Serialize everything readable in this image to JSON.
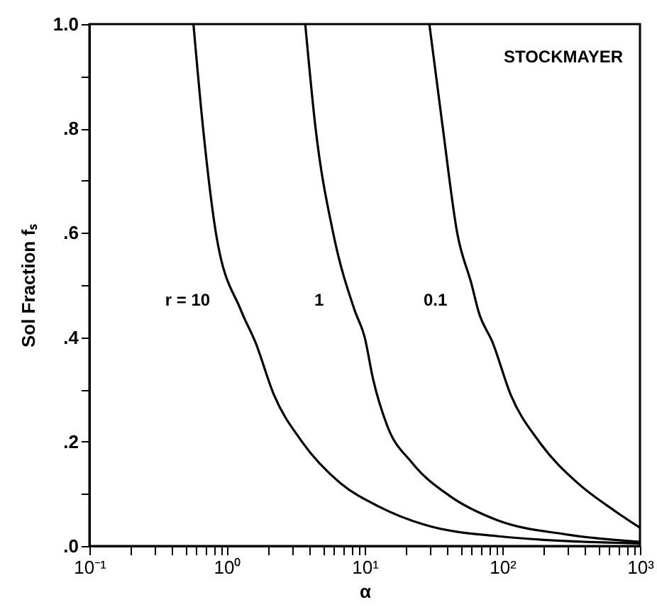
{
  "chart_data": {
    "type": "line",
    "xlabel": "α",
    "ylabel": "Sol Fraction fₛ",
    "annotations": [
      "STOCKMAYER"
    ],
    "log": "x",
    "grid": false,
    "legend": false,
    "xlim": [
      0.1,
      1000
    ],
    "ylim": [
      0,
      1
    ],
    "xticks": [
      {
        "value": 0.1,
        "label": "10⁻¹"
      },
      {
        "value": 0.2,
        "label": null
      },
      {
        "value": 0.3,
        "label": null
      },
      {
        "value": 0.4,
        "label": null
      },
      {
        "value": 0.5,
        "label": null
      },
      {
        "value": 0.6,
        "label": null
      },
      {
        "value": 0.7,
        "label": null
      },
      {
        "value": 0.8,
        "label": null
      },
      {
        "value": 0.9,
        "label": null
      },
      {
        "value": 1,
        "label": "10⁰"
      },
      {
        "value": 2,
        "label": null
      },
      {
        "value": 3,
        "label": null
      },
      {
        "value": 4,
        "label": null
      },
      {
        "value": 5,
        "label": null
      },
      {
        "value": 6,
        "label": null
      },
      {
        "value": 7,
        "label": null
      },
      {
        "value": 8,
        "label": null
      },
      {
        "value": 9,
        "label": null
      },
      {
        "value": 10,
        "label": "10¹"
      },
      {
        "value": 20,
        "label": null
      },
      {
        "value": 30,
        "label": null
      },
      {
        "value": 40,
        "label": null
      },
      {
        "value": 50,
        "label": null
      },
      {
        "value": 60,
        "label": null
      },
      {
        "value": 70,
        "label": null
      },
      {
        "value": 80,
        "label": null
      },
      {
        "value": 90,
        "label": null
      },
      {
        "value": 100,
        "label": "10²"
      },
      {
        "value": 200,
        "label": null
      },
      {
        "value": 300,
        "label": null
      },
      {
        "value": 400,
        "label": null
      },
      {
        "value": 500,
        "label": null
      },
      {
        "value": 600,
        "label": null
      },
      {
        "value": 700,
        "label": null
      },
      {
        "value": 800,
        "label": null
      },
      {
        "value": 900,
        "label": null
      },
      {
        "value": 1000,
        "label": "10³"
      }
    ],
    "yticks": [
      {
        "value": 0,
        "label": ".0"
      },
      {
        "value": 0.1,
        "label": null
      },
      {
        "value": 0.2,
        "label": ".2"
      },
      {
        "value": 0.3,
        "label": null
      },
      {
        "value": 0.4,
        "label": ".4"
      },
      {
        "value": 0.5,
        "label": null
      },
      {
        "value": 0.6,
        "label": ".6"
      },
      {
        "value": 0.7,
        "label": null
      },
      {
        "value": 0.8,
        "label": ".8"
      },
      {
        "value": 0.9,
        "label": null
      },
      {
        "value": 1,
        "label": "1.0"
      }
    ],
    "series": [
      {
        "name": "r = 10",
        "color": "#000000",
        "x": [
          0.57,
          0.67,
          0.83,
          1.27,
          1.61,
          2.19,
          3.5,
          6.7,
          12.6,
          27,
          91,
          1000
        ],
        "values": [
          1,
          0.8,
          0.6,
          0.45,
          0.39,
          0.29,
          0.2,
          0.12,
          0.076,
          0.041,
          0.019,
          0.005
        ]
      },
      {
        "name": "1",
        "color": "#000000",
        "x": [
          3.7,
          4.4,
          5.9,
          8.5,
          10,
          11.5,
          14.6,
          22,
          42,
          91,
          295,
          1000
        ],
        "values": [
          1,
          0.8,
          0.6,
          0.45,
          0.4,
          0.32,
          0.23,
          0.16,
          0.095,
          0.05,
          0.022,
          0.008
        ]
      },
      {
        "name": "0.1",
        "color": "#000000",
        "x": [
          29.5,
          37,
          47,
          60,
          67,
          85,
          115,
          185,
          355,
          650,
          1000
        ],
        "values": [
          1,
          0.8,
          0.6,
          0.5,
          0.45,
          0.39,
          0.29,
          0.2,
          0.12,
          0.068,
          0.035
        ]
      }
    ]
  }
}
